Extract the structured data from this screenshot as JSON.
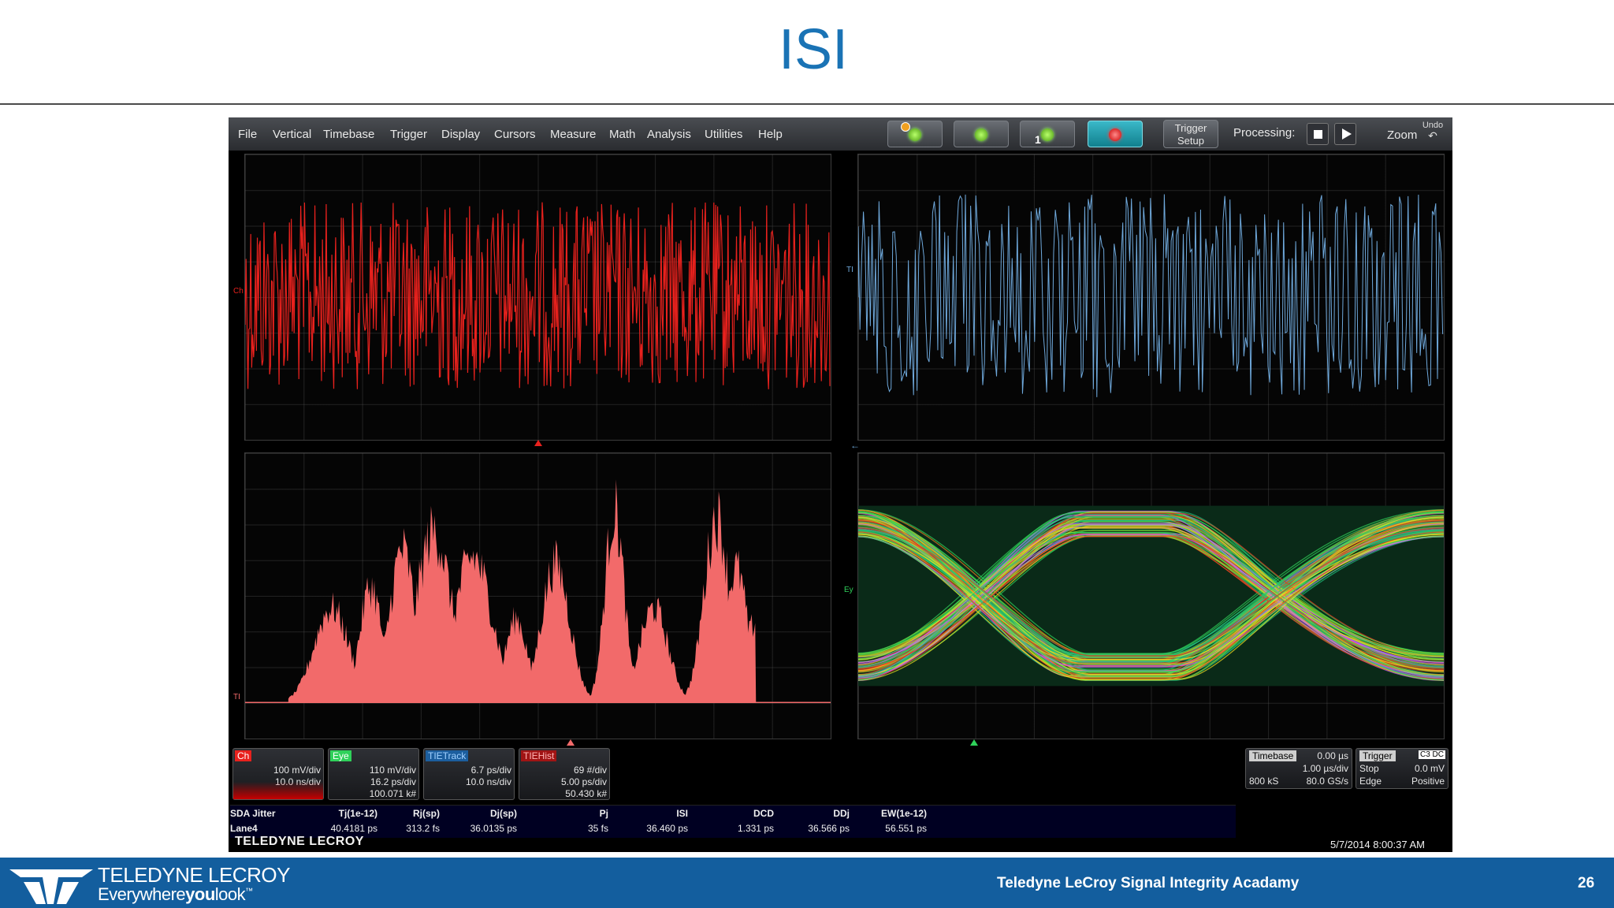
{
  "slide": {
    "title": "ISI",
    "page_number": "26",
    "footer_text": "Teledyne LeCroy Signal Integrity Acadamy"
  },
  "brand": {
    "name": "TELEDYNE LECROY",
    "tagline_part1": "Everywhere",
    "tagline_part2": "you",
    "tagline_part3": "look"
  },
  "menu": [
    "File",
    "Vertical",
    "Timebase",
    "Trigger",
    "Display",
    "Cursors",
    "Measure",
    "Math",
    "Analysis",
    "Utilities",
    "Help"
  ],
  "toolbar": {
    "trigger_setup_line1": "Trigger",
    "trigger_setup_line2": "Setup",
    "processing_label": "Processing:",
    "zoom_label": "Zoom",
    "undo_label": "Undo",
    "one_label": "1"
  },
  "colors": {
    "title_blue": "#1a73b5",
    "footer_blue": "#135e9e",
    "ch_red": "#e8211d",
    "track_blue": "#6fa9dc",
    "hist_red": "#f26a6a",
    "eye_green": "#2fd15a"
  },
  "grid_labels": {
    "ch": "Ch",
    "ti_track": "TI",
    "eye": "Ey",
    "ti_hist": "TI"
  },
  "channel_badges": [
    {
      "name": "Ch",
      "color": "#e8211d",
      "text_color": "#ffffff",
      "lines": [
        "100 mV/div",
        "10.0 ns/div"
      ]
    },
    {
      "name": "Eye",
      "color": "#2fd15a",
      "text_color": "#ffffff",
      "lines": [
        "110 mV/div",
        "16.2 ps/div",
        "100.071 k#"
      ]
    },
    {
      "name": "TIETrack",
      "color": "#2e87d4",
      "text_color": "#9fd0ff",
      "lines": [
        "6.7 ps/div",
        "10.0 ns/div"
      ]
    },
    {
      "name": "TIEHist",
      "color": "#e8211d",
      "text_color": "#ffb5b5",
      "lines": [
        "69 #/div",
        "5.00 ps/div",
        "50.430 k#"
      ]
    }
  ],
  "timebase": {
    "label": "Timebase",
    "offset": "0.00 µs",
    "per_div": "1.00 µs/div",
    "samples": "800 kS",
    "rate": "80.0 GS/s"
  },
  "trigger": {
    "label": "Trigger",
    "tag": "C3 DC",
    "mode": "Stop",
    "level": "0.0 mV",
    "type": "Edge",
    "slope": "Positive"
  },
  "measurements": {
    "headers": [
      "SDA Jitter",
      "Tj(1e-12)",
      "Rj(sp)",
      "Dj(sp)",
      "Pj",
      "ISI",
      "DCD",
      "DDj",
      "EW(1e-12)"
    ],
    "row_label": "Lane4",
    "values": [
      "40.4181 ps",
      "313.2 fs",
      "36.0135 ps",
      "35 fs",
      "36.460 ps",
      "1.331 ps",
      "36.566 ps",
      "56.551 ps"
    ]
  },
  "status": {
    "scope_brand": "TELEDYNE LECROY",
    "timestamp": "5/7/2014 8:00:37 AM"
  }
}
